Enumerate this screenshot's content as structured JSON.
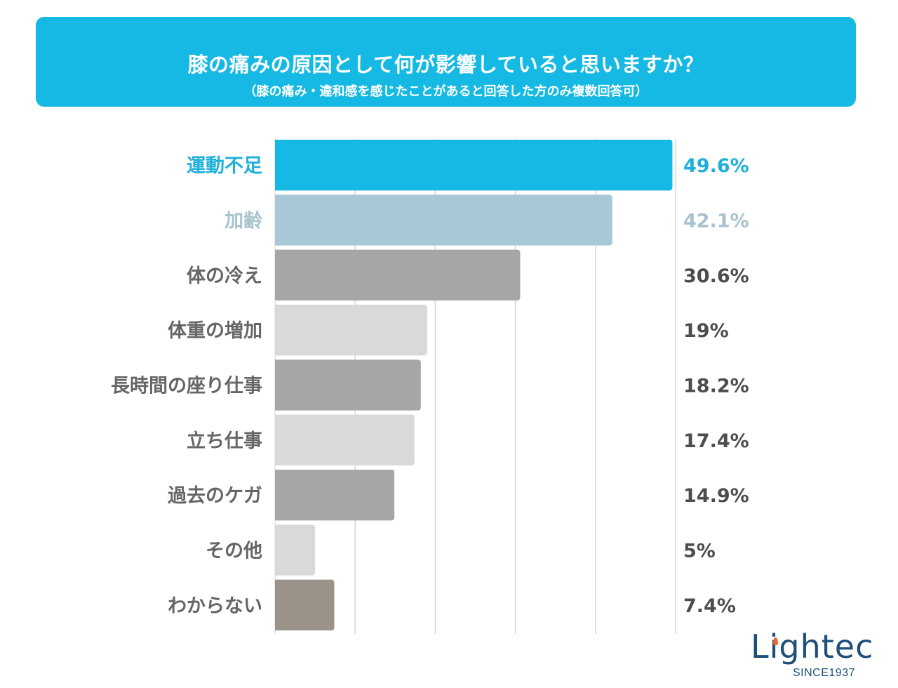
{
  "header": {
    "title": "膝の痛みの原因として何が影響していると思いますか？",
    "subtitle": "（膝の痛み・違和感を感じたことがあると回答した方のみ複数回答可）"
  },
  "colors": {
    "header_bg": "#16b9e3",
    "accent_blue": "#16b9e3",
    "light_blue": "#a8c8d5",
    "dark_gray": "#a6a6a6",
    "light_gray": "#d9d9d9",
    "taupe": "#9b928a",
    "label_gray": "#666666",
    "value_gray": "#4d4d4d",
    "grid": "#d6d6d6"
  },
  "logo": {
    "name": "Lightec",
    "tagline": "SINCE1937"
  },
  "chart_data": {
    "type": "bar",
    "orientation": "horizontal",
    "title": "膝の痛みの原因として何が影響していると思いますか？",
    "subtitle": "（膝の痛み・違和感を感じたことがあると回答した方のみ複数回答可）",
    "xlabel": "",
    "ylabel": "",
    "unit": "%",
    "xlim": [
      0,
      50
    ],
    "grid": true,
    "grid_step": 10,
    "categories": [
      "運動不足",
      "加齢",
      "体の冷え",
      "体重の増加",
      "長時間の座り仕事",
      "立ち仕事",
      "過去のケガ",
      "その他",
      "わからない"
    ],
    "values": [
      49.6,
      42.1,
      30.6,
      19,
      18.2,
      17.4,
      14.9,
      5,
      7.4
    ],
    "value_labels": [
      "49.6%",
      "42.1%",
      "30.6%",
      "19%",
      "18.2%",
      "17.4%",
      "14.9%",
      "5%",
      "7.4%"
    ],
    "bar_colors": [
      "#16b9e3",
      "#a8c8d5",
      "#a6a6a6",
      "#d9d9d9",
      "#a6a6a6",
      "#d9d9d9",
      "#a6a6a6",
      "#d9d9d9",
      "#9b928a"
    ],
    "label_colors": [
      "#1fb0da",
      "#a8c3cf",
      "#666666",
      "#666666",
      "#666666",
      "#666666",
      "#666666",
      "#666666",
      "#666666"
    ],
    "value_label_colors": [
      "#1fb0da",
      "#a8c3cf",
      "#4d4d4d",
      "#4d4d4d",
      "#4d4d4d",
      "#4d4d4d",
      "#4d4d4d",
      "#4d4d4d",
      "#4d4d4d"
    ]
  }
}
